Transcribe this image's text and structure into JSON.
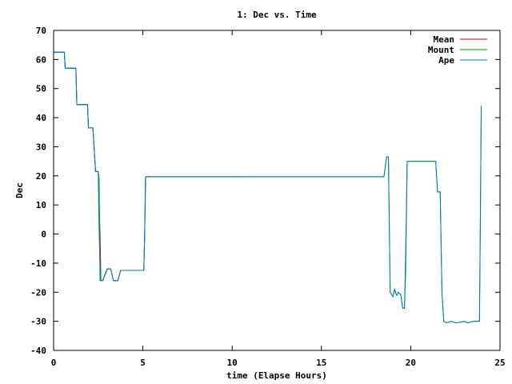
{
  "chart_data": {
    "type": "line",
    "title": "1: Dec vs. Time",
    "xlabel": "time (Elapse Hours)",
    "ylabel": "Dec",
    "xlim": [
      0,
      25
    ],
    "ylim": [
      -40,
      70
    ],
    "xticks": [
      0,
      5,
      10,
      15,
      20,
      25
    ],
    "yticks": [
      -40,
      -30,
      -20,
      -10,
      0,
      10,
      20,
      30,
      40,
      50,
      60,
      70
    ],
    "grid": false,
    "legend_position": "top-right",
    "series": [
      {
        "name": "Mean",
        "color": "#cc0000",
        "x": [
          0,
          0.6,
          0.65,
          1.25,
          1.3,
          1.9,
          1.95,
          2.2,
          2.35,
          2.5,
          2.6,
          2.65,
          2.7,
          2.75,
          3.0,
          3.2,
          3.35,
          3.6,
          3.75,
          3.85,
          5.05,
          5.1,
          5.15,
          10.5
        ],
        "y": [
          62.5,
          62.5,
          57,
          57,
          44.5,
          44.5,
          36.5,
          36.5,
          21.5,
          21.5,
          0,
          -16,
          -16,
          -16,
          -12,
          -12,
          -16,
          -16,
          -12.5,
          -12.5,
          -12.5,
          0,
          19.7,
          19.7
        ]
      },
      {
        "name": "Mount",
        "color": "#00a000",
        "x": [
          0,
          0.6,
          0.65,
          1.25,
          1.3,
          1.9,
          1.95,
          2.2,
          2.35,
          2.5,
          2.55,
          2.6,
          2.7,
          2.75,
          3.0,
          3.2,
          3.35,
          3.6,
          3.75,
          3.85,
          5.05,
          5.1,
          5.15,
          18.5,
          18.65,
          18.75,
          18.85,
          19.0,
          19.1,
          19.2,
          19.25,
          19.3,
          19.45,
          19.55,
          19.65,
          19.72,
          19.8,
          19.85,
          20.0,
          21.4,
          21.5,
          21.65,
          21.75,
          21.85,
          22.0,
          22.3,
          22.5,
          22.6,
          23.0,
          23.2,
          23.5,
          23.85,
          23.9,
          23.95
        ],
        "y": [
          62.5,
          62.5,
          57,
          57,
          44.5,
          44.5,
          36.5,
          36.5,
          21.5,
          21.5,
          19,
          -16,
          -16,
          -16,
          -12,
          -12,
          -16,
          -16,
          -12.5,
          -12.5,
          -12.5,
          0,
          19.7,
          19.7,
          26.5,
          26.5,
          -20,
          -21.5,
          -19,
          -21,
          -21,
          -20,
          -21,
          -25.5,
          -25.5,
          -5,
          25,
          25,
          25,
          25,
          14.5,
          14.5,
          -20,
          -30,
          -30.5,
          -30,
          -30.5,
          -30.5,
          -30,
          -30.5,
          -30,
          -30,
          5,
          44
        ]
      },
      {
        "name": "Ape",
        "color": "#0077cc",
        "x": [
          0,
          0.6,
          0.65,
          1.25,
          1.3,
          1.9,
          1.95,
          2.2,
          2.35,
          2.5,
          2.55,
          2.6,
          2.65,
          2.75,
          3.0,
          3.2,
          3.35,
          3.6,
          3.75,
          3.85,
          5.05,
          5.1,
          5.15,
          18.5,
          18.65,
          18.75,
          18.85,
          19.0,
          19.1,
          19.2,
          19.25,
          19.3,
          19.45,
          19.55,
          19.65,
          19.72,
          19.8,
          19.85,
          20.0,
          21.4,
          21.5,
          21.65,
          21.75,
          21.85,
          22.0,
          22.3,
          22.5,
          22.6,
          23.0,
          23.2,
          23.5,
          23.85,
          23.9,
          23.95
        ],
        "y": [
          62.5,
          62.5,
          57,
          57,
          44.5,
          44.5,
          36.5,
          36.5,
          21.5,
          21.5,
          0,
          -10,
          -16,
          -16,
          -12,
          -12,
          -16,
          -16,
          -12.5,
          -12.5,
          -12.5,
          0,
          19.7,
          19.7,
          26.5,
          26.5,
          -20,
          -21.5,
          -19,
          -21,
          -21,
          -20,
          -21,
          -25.5,
          -25.5,
          -12.5,
          25,
          25,
          25,
          25,
          14.5,
          14.5,
          -20,
          -30,
          -30.5,
          -30,
          -30.5,
          -30.5,
          -30,
          -30.5,
          -30,
          -30,
          5,
          44
        ]
      }
    ]
  }
}
